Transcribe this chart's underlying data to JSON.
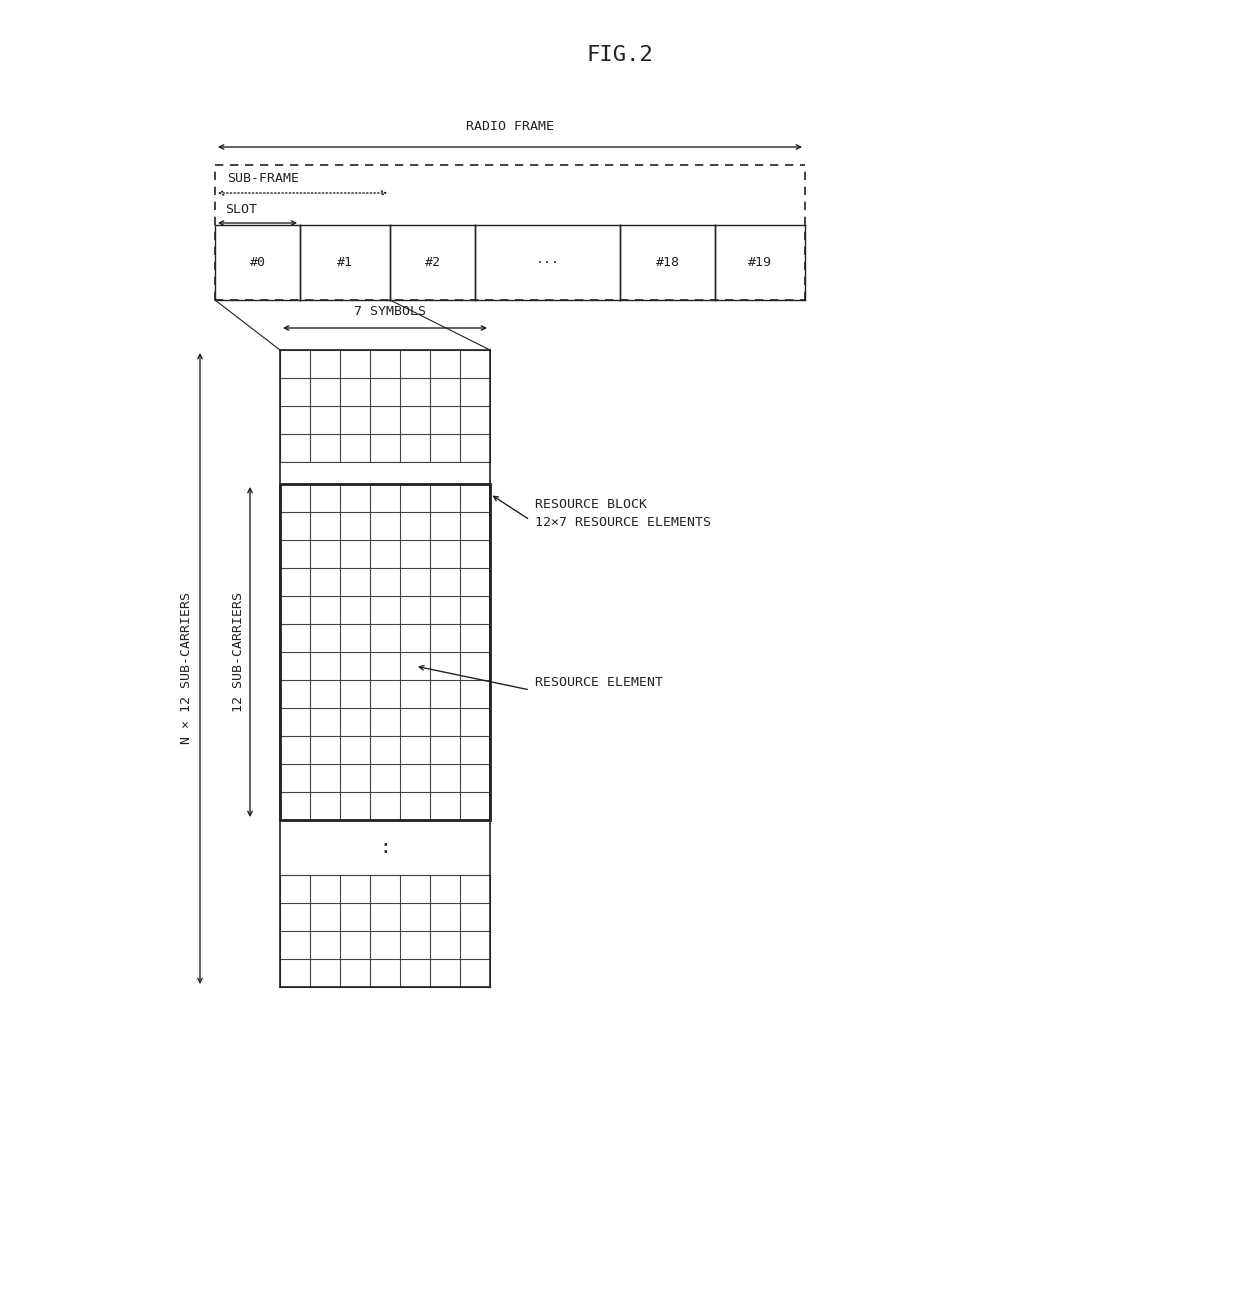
{
  "title": "FIG.2",
  "title_fontsize": 16,
  "bg_color": "#ffffff",
  "line_color": "#222222",
  "grid_color": "#444444",
  "radio_frame_label": "RADIO FRAME",
  "sub_frame_label": "SUB-FRAME",
  "slot_label": "SLOT",
  "slot_labels": [
    "#0",
    "#1",
    "#2",
    "···",
    "#18",
    "#19"
  ],
  "symbols_label": "7 SYMBOLS",
  "n_subcarriers_label": "N × 12 SUB-CARRIERS",
  "twelve_subcarriers_label": "12 SUB-CARRIERS",
  "resource_block_label1": "RESOURCE BLOCK",
  "resource_block_label2": "12×7 RESOURCE ELEMENTS",
  "resource_element_label": "RESOURCE ELEMENT",
  "font_size": 9.5,
  "annotation_font_size": 9.5
}
